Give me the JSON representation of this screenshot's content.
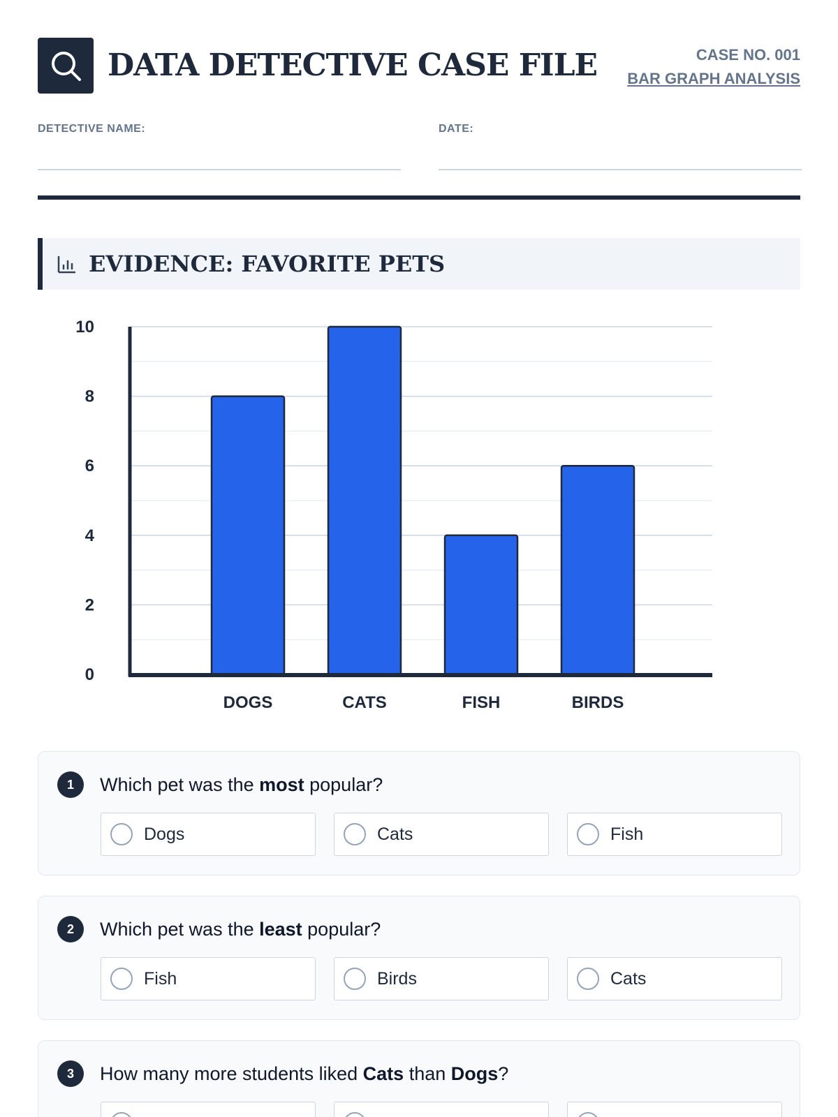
{
  "header": {
    "title": "DATA DETECTIVE CASE FILE",
    "case_number": "CASE NO. 001",
    "case_subtitle": "BAR GRAPH ANALYSIS",
    "logo_icon": "magnifying-glass-icon"
  },
  "fields": {
    "detective_name_label": "DETECTIVE NAME:",
    "date_label": "DATE:"
  },
  "section": {
    "title": "EVIDENCE: FAVORITE PETS",
    "icon": "bar-chart-icon"
  },
  "chart_data": {
    "type": "bar",
    "title": "",
    "xlabel": "",
    "ylabel": "",
    "categories": [
      "DOGS",
      "CATS",
      "FISH",
      "BIRDS"
    ],
    "values": [
      8,
      10,
      4,
      6
    ],
    "ylim": [
      0,
      10
    ],
    "yticks": [
      0,
      2,
      4,
      6,
      8,
      10
    ],
    "grid": true,
    "bar_color": "#2563eb"
  },
  "questions": [
    {
      "number": "1",
      "prefix": "Which pet was the ",
      "emphasis": "most",
      "suffix": " popular?",
      "options": [
        "Dogs",
        "Cats",
        "Fish"
      ]
    },
    {
      "number": "2",
      "prefix": "Which pet was the ",
      "emphasis": "least",
      "suffix": " popular?",
      "options": [
        "Fish",
        "Birds",
        "Cats"
      ]
    },
    {
      "number": "3",
      "prefix": "How many more students liked ",
      "emphasis": "Cats",
      "middle": " than ",
      "emphasis2": "Dogs",
      "suffix": "?",
      "options": [
        "",
        "",
        ""
      ]
    }
  ],
  "colors": {
    "ink": "#1e293b",
    "muted": "#64748b",
    "bar": "#2563eb"
  }
}
